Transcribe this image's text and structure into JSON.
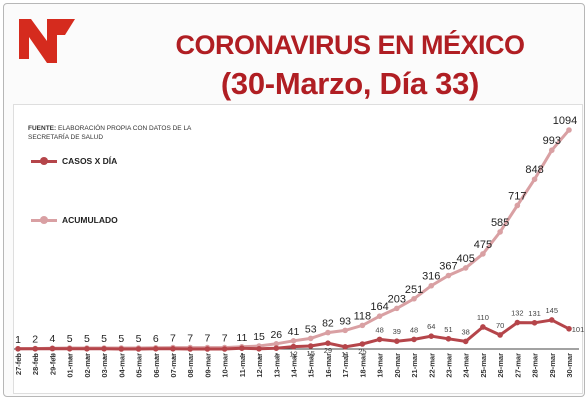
{
  "header": {
    "title_line1": "CORONAVIRUS EN MÉXICO",
    "title_line2": "(30-Marzo, Día 33)"
  },
  "source": {
    "label": "FUENTE:",
    "text": "ELABORACIÓN PROPIA CON DATOS DE LA SECRETARÍA DE SALUD"
  },
  "colors": {
    "title": "#b01e23",
    "daily": "#b5454a",
    "cumulative": "#d9a0a3",
    "axis": "#444444",
    "logo": "#d52b1e"
  },
  "chart_data": {
    "type": "line",
    "categories": [
      "27-feb",
      "28-feb",
      "29-feb",
      "01-mar",
      "02-mar",
      "03-mar",
      "04-mar",
      "05-mar",
      "06-mar",
      "07-mar",
      "08-mar",
      "09-mar",
      "10-mar",
      "11-mar",
      "12-mar",
      "13-mar",
      "14-mar",
      "15-mar",
      "16-mar",
      "17-mar",
      "18-mar",
      "19-mar",
      "20-mar",
      "21-mar",
      "22-mar",
      "23-mar",
      "24-mar",
      "25-mar",
      "26-mar",
      "27-mar",
      "28-mar",
      "29-mar",
      "30-mar"
    ],
    "series": [
      {
        "name": "CASOS X DÍA",
        "values": [
          1,
          1,
          2,
          1,
          1,
          1,
          0,
          0,
          1,
          1,
          0,
          0,
          0,
          4,
          1,
          4,
          12,
          15,
          29,
          11,
          25,
          48,
          39,
          48,
          64,
          51,
          38,
          110,
          70,
          132,
          131,
          145,
          101
        ],
        "labels": [
          "1",
          "1",
          "2",
          "1",
          "1",
          "1",
          "",
          "",
          "1",
          "1",
          "",
          "",
          "",
          "4",
          "1",
          "4",
          "12",
          "15",
          "29",
          "11",
          "25",
          "48",
          "39",
          "48",
          "64",
          "51",
          "38",
          "110",
          "70",
          "132",
          "131",
          "145",
          "101"
        ]
      },
      {
        "name": "ACUMULADO",
        "values": [
          1,
          2,
          4,
          5,
          5,
          5,
          5,
          5,
          6,
          7,
          7,
          7,
          7,
          11,
          15,
          26,
          41,
          53,
          82,
          93,
          118,
          164,
          203,
          251,
          316,
          367,
          405,
          475,
          585,
          717,
          848,
          993,
          1094
        ],
        "labels": [
          "1",
          "2",
          "4",
          "5",
          "5",
          "5",
          "5",
          "5",
          "6",
          "7",
          "7",
          "7",
          "7",
          "11",
          "15",
          "26",
          "41",
          "53",
          "82",
          "93",
          "118",
          "164",
          "203",
          "251",
          "316",
          "367",
          "405",
          "475",
          "585",
          "717",
          "848",
          "993",
          "1094"
        ]
      }
    ],
    "ylim": [
      0,
      1094
    ],
    "grid": false,
    "legend_position": "left"
  }
}
